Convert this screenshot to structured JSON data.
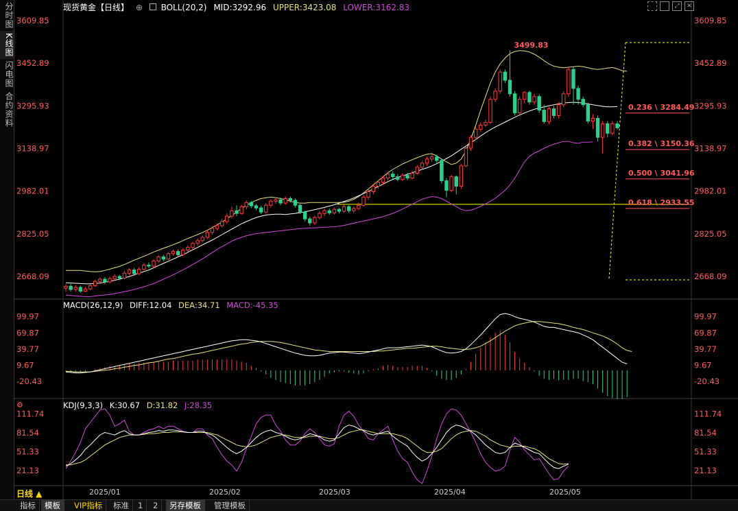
{
  "sidebar": [
    "分时图",
    "K线图",
    "闪电图",
    "合约资料"
  ],
  "header": {
    "symbol": "现货黄金【日线】",
    "icon": "circle-plus-icon",
    "boll": "BOLL(20,2)",
    "mid": "MID:3292.96",
    "upper": "UPPER:3423.08",
    "lower": "LOWER:3162.83"
  },
  "window_icons": [
    "dashed-box-icon",
    "box-icon",
    "expand-icon",
    "close-icon"
  ],
  "price_axis": [
    "3609.85",
    "3452.89",
    "3295.93",
    "3138.97",
    "2982.01",
    "2825.05",
    "2668.09"
  ],
  "peak_label": "3499.83",
  "fib_labels": [
    "0.236 \\ 3284.49",
    "0.382 \\ 3150.36",
    "0.500 \\ 3041.96",
    "0.618 \\ 2933.55"
  ],
  "macd_header": {
    "name": "MACD(26,12,9)",
    "diff": "DIFF:12.04",
    "dea": "DEA:34.71",
    "macd": "MACD:-45.35"
  },
  "macd_axis": [
    "99.97",
    "69.87",
    "39.77",
    "9.67",
    "-20.43"
  ],
  "kdj_header": {
    "name": "KDJ(9,3,3)",
    "k": "K:30.67",
    "d": "D:31.82",
    "j": "J:28.35"
  },
  "kdj_axis": [
    "111.74",
    "81.54",
    "51.33",
    "21.13"
  ],
  "period_label": "日线 ▲",
  "date_labels": [
    "2025/01",
    "2025/02",
    "2025/03",
    "2025/04",
    "2025/05"
  ],
  "bottom_tabs": [
    "指标",
    "模板",
    "VIP指标",
    "标准",
    "1",
    "2",
    "另存模板",
    "管理模板"
  ],
  "colors": {
    "up": "#ff3b3b",
    "down": "#2ecf8f",
    "upper": "#e8e27a",
    "mid": "#ffffff",
    "lower": "#d048d8",
    "fib": "#ffff00",
    "axis": "#ff5a5a"
  },
  "chart_data": {
    "type": "candlestick",
    "title": "现货黄金【日线】",
    "ylim": [
      2600,
      3650
    ],
    "candles": [
      [
        2625,
        2632,
        2612,
        2640
      ],
      [
        2632,
        2620,
        2612,
        2641
      ],
      [
        2620,
        2628,
        2612,
        2636
      ],
      [
        2628,
        2614,
        2608,
        2634
      ],
      [
        2614,
        2622,
        2610,
        2630
      ],
      [
        2622,
        2634,
        2618,
        2640
      ],
      [
        2634,
        2650,
        2630,
        2656
      ],
      [
        2650,
        2658,
        2640,
        2664
      ],
      [
        2658,
        2648,
        2640,
        2666
      ],
      [
        2648,
        2660,
        2642,
        2668
      ],
      [
        2660,
        2668,
        2652,
        2676
      ],
      [
        2668,
        2662,
        2654,
        2674
      ],
      [
        2662,
        2680,
        2658,
        2688
      ],
      [
        2680,
        2692,
        2672,
        2698
      ],
      [
        2692,
        2678,
        2670,
        2700
      ],
      [
        2678,
        2695,
        2672,
        2702
      ],
      [
        2695,
        2710,
        2690,
        2718
      ],
      [
        2710,
        2706,
        2698,
        2720
      ],
      [
        2706,
        2725,
        2700,
        2732
      ],
      [
        2725,
        2740,
        2718,
        2746
      ],
      [
        2740,
        2732,
        2724,
        2748
      ],
      [
        2732,
        2752,
        2728,
        2758
      ],
      [
        2752,
        2760,
        2745,
        2766
      ],
      [
        2760,
        2748,
        2740,
        2768
      ],
      [
        2748,
        2765,
        2742,
        2772
      ],
      [
        2765,
        2775,
        2758,
        2782
      ],
      [
        2775,
        2790,
        2768,
        2796
      ],
      [
        2790,
        2800,
        2782,
        2808
      ],
      [
        2800,
        2812,
        2795,
        2818
      ],
      [
        2812,
        2830,
        2806,
        2838
      ],
      [
        2830,
        2845,
        2822,
        2852
      ],
      [
        2845,
        2855,
        2838,
        2862
      ],
      [
        2855,
        2870,
        2848,
        2880
      ],
      [
        2870,
        2890,
        2862,
        2900
      ],
      [
        2890,
        2910,
        2882,
        2925
      ],
      [
        2910,
        2900,
        2890,
        2930
      ],
      [
        2900,
        2925,
        2895,
        2932
      ],
      [
        2925,
        2940,
        2915,
        2948
      ],
      [
        2940,
        2928,
        2920,
        2946
      ],
      [
        2928,
        2920,
        2912,
        2935
      ],
      [
        2920,
        2905,
        2898,
        2928
      ],
      [
        2905,
        2930,
        2900,
        2938
      ],
      [
        2930,
        2945,
        2922,
        2952
      ],
      [
        2945,
        2950,
        2935,
        2958
      ],
      [
        2950,
        2938,
        2930,
        2958
      ],
      [
        2938,
        2955,
        2932,
        2962
      ],
      [
        2955,
        2948,
        2940,
        2962
      ],
      [
        2948,
        2930,
        2922,
        2955
      ],
      [
        2930,
        2905,
        2898,
        2935
      ],
      [
        2905,
        2880,
        2872,
        2910
      ],
      [
        2880,
        2865,
        2855,
        2888
      ],
      [
        2865,
        2885,
        2858,
        2892
      ],
      [
        2885,
        2900,
        2878,
        2908
      ],
      [
        2900,
        2910,
        2890,
        2918
      ],
      [
        2910,
        2902,
        2895,
        2918
      ],
      [
        2902,
        2915,
        2896,
        2922
      ],
      [
        2915,
        2908,
        2900,
        2920
      ],
      [
        2908,
        2925,
        2902,
        2932
      ],
      [
        2925,
        2910,
        2902,
        2930
      ],
      [
        2910,
        2918,
        2903,
        2926
      ],
      [
        2918,
        2930,
        2912,
        2940
      ],
      [
        2930,
        2960,
        2925,
        2968
      ],
      [
        2960,
        2980,
        2950,
        2990
      ],
      [
        2980,
        3000,
        2970,
        3008
      ],
      [
        3000,
        3015,
        2990,
        3022
      ],
      [
        3015,
        3030,
        3005,
        3038
      ],
      [
        3030,
        3045,
        3020,
        3052
      ],
      [
        3045,
        3035,
        3025,
        3055
      ],
      [
        3035,
        3025,
        3018,
        3045
      ],
      [
        3025,
        3040,
        3018,
        3048
      ],
      [
        3040,
        3030,
        3022,
        3050
      ],
      [
        3030,
        3048,
        3025,
        3056
      ],
      [
        3048,
        3070,
        3042,
        3078
      ],
      [
        3070,
        3085,
        3060,
        3092
      ],
      [
        3085,
        3100,
        3075,
        3108
      ],
      [
        3100,
        3108,
        3090,
        3118
      ],
      [
        3108,
        3095,
        3086,
        3115
      ],
      [
        3095,
        3020,
        3010,
        3100
      ],
      [
        3020,
        2985,
        2960,
        3030
      ],
      [
        2985,
        3035,
        2978,
        3042
      ],
      [
        3035,
        3000,
        2970,
        3040
      ],
      [
        3000,
        3075,
        2990,
        3082
      ],
      [
        3075,
        3140,
        3070,
        3148
      ],
      [
        3140,
        3180,
        3130,
        3188
      ],
      [
        3180,
        3210,
        3170,
        3218
      ],
      [
        3210,
        3225,
        3200,
        3235
      ],
      [
        3225,
        3235,
        3218,
        3245
      ],
      [
        3235,
        3320,
        3228,
        3330
      ],
      [
        3320,
        3350,
        3310,
        3360
      ],
      [
        3350,
        3420,
        3340,
        3430
      ],
      [
        3420,
        3390,
        3380,
        3430
      ],
      [
        3390,
        3340,
        3330,
        3499.83
      ],
      [
        3340,
        3270,
        3260,
        3350
      ],
      [
        3270,
        3320,
        3262,
        3330
      ],
      [
        3320,
        3345,
        3305,
        3350
      ],
      [
        3345,
        3310,
        3300,
        3352
      ],
      [
        3310,
        3330,
        3300,
        3340
      ],
      [
        3330,
        3280,
        3270,
        3338
      ],
      [
        3280,
        3238,
        3230,
        3300
      ],
      [
        3238,
        3285,
        3228,
        3292
      ],
      [
        3285,
        3260,
        3250,
        3295
      ],
      [
        3260,
        3300,
        3250,
        3310
      ],
      [
        3300,
        3340,
        3290,
        3350
      ],
      [
        3340,
        3430,
        3330,
        3440
      ],
      [
        3430,
        3360,
        3300,
        3440
      ],
      [
        3360,
        3320,
        3300,
        3370
      ],
      [
        3320,
        3300,
        3290,
        3330
      ],
      [
        3300,
        3240,
        3230,
        3308
      ],
      [
        3240,
        3250,
        3210,
        3265
      ],
      [
        3250,
        3180,
        3165,
        3260
      ],
      [
        3180,
        3230,
        3120,
        3240
      ],
      [
        3230,
        3195,
        3180,
        3240
      ],
      [
        3195,
        3230,
        3188,
        3240
      ],
      [
        3230,
        3215,
        3208,
        3240
      ]
    ],
    "boll_upper": [
      2690,
      2690,
      2690,
      2690,
      2688,
      2686,
      2685,
      2686,
      2690,
      2695,
      2700,
      2705,
      2712,
      2720,
      2728,
      2735,
      2742,
      2750,
      2758,
      2765,
      2772,
      2778,
      2785,
      2792,
      2800,
      2808,
      2815,
      2822,
      2830,
      2838,
      2848,
      2858,
      2868,
      2880,
      2892,
      2905,
      2918,
      2930,
      2940,
      2948,
      2955,
      2958,
      2960,
      2958,
      2955,
      2950,
      2945,
      2940,
      2938,
      2938,
      2940,
      2940,
      2940,
      2940,
      2940,
      2940,
      2940,
      2941,
      2945,
      2952,
      2962,
      2975,
      2990,
      3005,
      3020,
      3035,
      3050,
      3062,
      3072,
      3082,
      3090,
      3098,
      3105,
      3112,
      3118,
      3120,
      3112,
      3100,
      3090,
      3080,
      3085,
      3100,
      3130,
      3175,
      3225,
      3280,
      3330,
      3380,
      3420,
      3450,
      3472,
      3488,
      3496,
      3499,
      3498,
      3494,
      3486,
      3475,
      3462,
      3450,
      3442,
      3438,
      3436,
      3438,
      3440,
      3442,
      3440,
      3436,
      3432,
      3430,
      3432,
      3435,
      3437,
      3432,
      3425,
      3423
    ],
    "boll_mid": [
      2645,
      2644,
      2643,
      2642,
      2641,
      2641,
      2642,
      2644,
      2647,
      2650,
      2654,
      2658,
      2663,
      2668,
      2674,
      2680,
      2686,
      2692,
      2700,
      2708,
      2716,
      2724,
      2732,
      2740,
      2748,
      2757,
      2766,
      2775,
      2784,
      2793,
      2802,
      2812,
      2822,
      2832,
      2842,
      2852,
      2862,
      2870,
      2878,
      2885,
      2890,
      2894,
      2896,
      2897,
      2897,
      2896,
      2898,
      2900,
      2903,
      2906,
      2910,
      2914,
      2918,
      2922,
      2927,
      2932,
      2938,
      2944,
      2950,
      2957,
      2965,
      2973,
      2981,
      2990,
      2999,
      3008,
      3017,
      3025,
      3032,
      3038,
      3044,
      3050,
      3056,
      3062,
      3068,
      3075,
      3083,
      3092,
      3102,
      3112,
      3124,
      3136,
      3148,
      3160,
      3172,
      3185,
      3197,
      3208,
      3218,
      3227,
      3236,
      3245,
      3254,
      3262,
      3270,
      3277,
      3283,
      3288,
      3292,
      3296,
      3300,
      3303,
      3306,
      3308,
      3309,
      3308,
      3306,
      3303,
      3300,
      3297,
      3294,
      3292,
      3292,
      3293
    ],
    "boll_lower": [
      2600,
      2598,
      2596,
      2595,
      2594,
      2594,
      2596,
      2598,
      2600,
      2602,
      2605,
      2608,
      2612,
      2616,
      2620,
      2625,
      2630,
      2636,
      2642,
      2650,
      2658,
      2666,
      2674,
      2683,
      2692,
      2702,
      2712,
      2722,
      2733,
      2744,
      2756,
      2768,
      2778,
      2788,
      2798,
      2806,
      2812,
      2818,
      2822,
      2826,
      2828,
      2830,
      2832,
      2834,
      2836,
      2838,
      2840,
      2842,
      2844,
      2845,
      2846,
      2847,
      2848,
      2849,
      2850,
      2851,
      2853,
      2856,
      2860,
      2864,
      2868,
      2872,
      2876,
      2880,
      2884,
      2888,
      2894,
      2900,
      2908,
      2916,
      2925,
      2934,
      2943,
      2952,
      2958,
      2962,
      2960,
      2955,
      2945,
      2935,
      2925,
      2915,
      2910,
      2912,
      2918,
      2926,
      2935,
      2945,
      2956,
      2970,
      2985,
      3005,
      3030,
      3060,
      3090,
      3110,
      3122,
      3130,
      3140,
      3148,
      3155,
      3160,
      3165,
      3165,
      3160,
      3158,
      3162,
      3162,
      3163
    ],
    "macd_ylim": [
      -45,
      115
    ],
    "macd_diff": [
      -3,
      -4,
      -5,
      -5,
      -4,
      -3,
      -1,
      1,
      3,
      5,
      7,
      9,
      11,
      13,
      15,
      17,
      19,
      21,
      23,
      25,
      27,
      29,
      31,
      33,
      35,
      37,
      39,
      41,
      43,
      45,
      47,
      49,
      51,
      53,
      55,
      56,
      57,
      57,
      56,
      55,
      53,
      50,
      47,
      44,
      41,
      38,
      35,
      32,
      30,
      28,
      27,
      27,
      28,
      30,
      32,
      33,
      34,
      34,
      33,
      32,
      31,
      32,
      34,
      36,
      38,
      40,
      42,
      42,
      42,
      43,
      44,
      45,
      46,
      47,
      46,
      44,
      40,
      36,
      33,
      32,
      33,
      35,
      40,
      48,
      57,
      66,
      76,
      86,
      96,
      104,
      106,
      104,
      100,
      97,
      95,
      93,
      90,
      86,
      82,
      80,
      80,
      78,
      76,
      74,
      72,
      70,
      66,
      62,
      57,
      50,
      43,
      36,
      29,
      22,
      15,
      12
    ],
    "macd_dea": [
      -2,
      -2,
      -3,
      -3,
      -3,
      -3,
      -2,
      -1,
      0,
      1,
      3,
      4,
      6,
      7,
      9,
      10,
      12,
      14,
      15,
      17,
      19,
      21,
      22,
      24,
      26,
      28,
      30,
      31,
      33,
      35,
      37,
      39,
      41,
      43,
      45,
      47,
      49,
      50,
      52,
      53,
      54,
      54,
      54,
      53,
      52,
      50,
      48,
      46,
      44,
      42,
      40,
      38,
      37,
      36,
      35,
      35,
      35,
      35,
      35,
      35,
      35,
      35,
      35,
      35,
      36,
      36,
      37,
      38,
      39,
      40,
      41,
      41,
      42,
      43,
      44,
      45,
      45,
      44,
      42,
      41,
      40,
      39,
      39,
      40,
      42,
      45,
      50,
      55,
      61,
      67,
      73,
      78,
      83,
      86,
      88,
      90,
      91,
      91,
      90,
      89,
      88,
      87,
      85,
      83,
      80,
      78,
      76,
      73,
      70,
      67,
      64,
      60,
      55,
      49,
      42,
      37,
      35
    ],
    "kdj_ylim": [
      0,
      120
    ],
    "kdj_k": [
      28,
      32,
      38,
      45,
      55,
      62,
      70,
      78,
      82,
      80,
      78,
      82,
      85,
      80,
      78,
      78,
      80,
      82,
      83,
      85,
      84,
      86,
      86,
      85,
      83,
      82,
      82,
      84,
      84,
      80,
      78,
      72,
      65,
      58,
      52,
      48,
      52,
      58,
      66,
      74,
      80,
      84,
      86,
      82,
      80,
      76,
      72,
      70,
      72,
      76,
      80,
      78,
      75,
      70,
      68,
      70,
      80,
      90,
      94,
      92,
      88,
      85,
      80,
      78,
      80,
      82,
      84,
      76,
      70,
      65,
      60,
      50,
      42,
      36,
      40,
      48,
      58,
      70,
      82,
      90,
      94,
      92,
      88,
      84,
      78,
      70,
      62,
      56,
      50,
      48,
      50,
      58,
      65,
      62,
      58,
      54,
      50,
      48,
      40,
      32,
      26,
      24,
      28,
      31
    ],
    "kdj_d": [
      30,
      30,
      32,
      34,
      38,
      44,
      50,
      56,
      62,
      66,
      70,
      74,
      76,
      78,
      78,
      78,
      79,
      80,
      80,
      81,
      82,
      82,
      83,
      83,
      83,
      82,
      82,
      82,
      82,
      82,
      80,
      78,
      74,
      70,
      66,
      62,
      60,
      59,
      60,
      62,
      66,
      70,
      74,
      76,
      78,
      78,
      76,
      74,
      74,
      74,
      76,
      76,
      76,
      74,
      72,
      72,
      74,
      78,
      82,
      84,
      86,
      86,
      84,
      82,
      80,
      80,
      80,
      80,
      78,
      76,
      72,
      66,
      60,
      54,
      50,
      50,
      52,
      56,
      64,
      72,
      78,
      82,
      84,
      85,
      84,
      80,
      76,
      70,
      66,
      62,
      60,
      58,
      60,
      60,
      60,
      58,
      56,
      52,
      46,
      40,
      36,
      32,
      31,
      32
    ],
    "kdj_j": [
      24,
      36,
      50,
      66,
      88,
      98,
      108,
      118,
      120,
      110,
      92,
      96,
      102,
      84,
      78,
      78,
      82,
      86,
      88,
      92,
      88,
      92,
      92,
      88,
      84,
      82,
      82,
      88,
      88,
      78,
      72,
      58,
      46,
      36,
      30,
      20,
      34,
      56,
      76,
      96,
      106,
      110,
      110,
      94,
      84,
      70,
      62,
      62,
      68,
      80,
      88,
      82,
      72,
      62,
      60,
      64,
      92,
      110,
      116,
      108,
      94,
      84,
      72,
      70,
      80,
      86,
      92,
      70,
      52,
      40,
      34,
      18,
      6,
      0,
      20,
      44,
      72,
      96,
      112,
      120,
      118,
      110,
      96,
      82,
      66,
      48,
      34,
      26,
      20,
      22,
      28,
      54,
      74,
      66,
      54,
      46,
      38,
      40,
      28,
      16,
      6,
      8,
      20,
      28
    ]
  }
}
